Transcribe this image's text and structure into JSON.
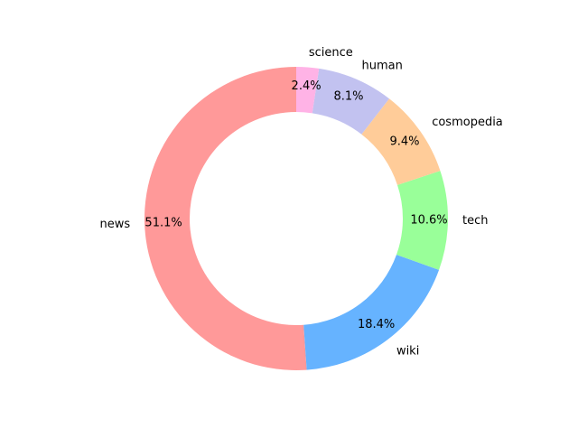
{
  "chart_data": {
    "type": "pie",
    "variant": "donut",
    "start_angle_deg": 90,
    "direction": "counterclockwise",
    "categories": [
      "news",
      "wiki",
      "tech",
      "cosmopedia",
      "human",
      "science"
    ],
    "values": [
      51.1,
      18.4,
      10.6,
      9.4,
      8.1,
      2.4
    ],
    "value_labels": [
      "51.1%",
      "18.4%",
      "10.6%",
      "9.4%",
      "8.1%",
      "2.4%"
    ],
    "colors": [
      "#ff9999",
      "#66b3ff",
      "#99ff99",
      "#ffcc99",
      "#c2c2f0",
      "#ffb3e6"
    ],
    "title": "",
    "legend": "none"
  }
}
